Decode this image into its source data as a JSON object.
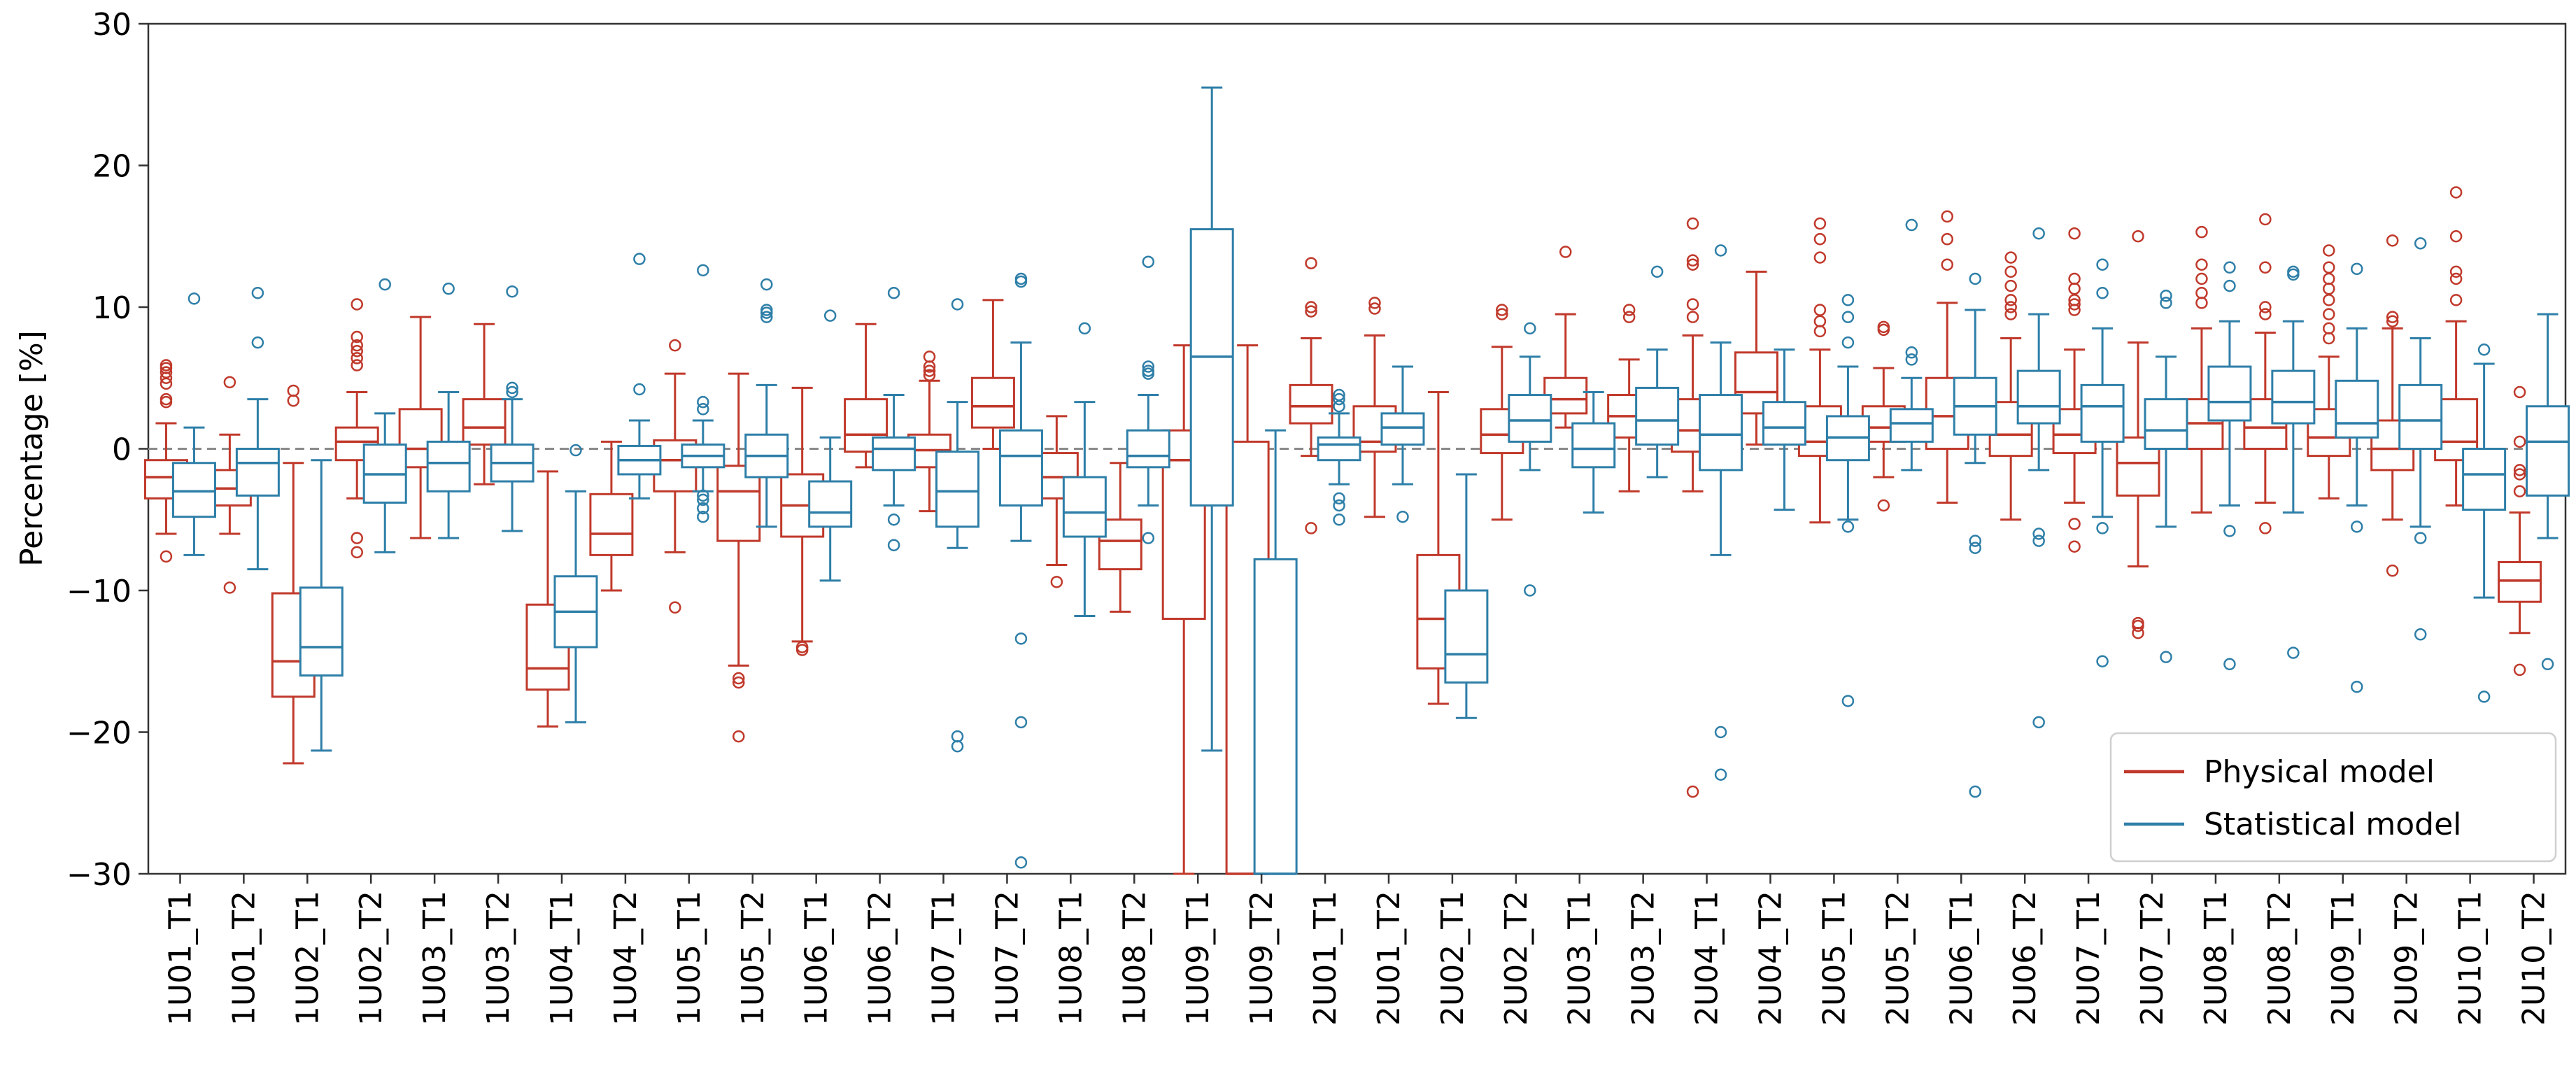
{
  "chart_data": {
    "type": "box",
    "title": "",
    "xlabel": "",
    "ylabel": "Percentage [%]",
    "ylim": [
      -30,
      30
    ],
    "yticks": [
      -30,
      -20,
      -10,
      0,
      10,
      20,
      30
    ],
    "reference_line": 0,
    "grid": false,
    "legend_position": "bottom-right",
    "colors": {
      "physical": "#c0392b",
      "statistical": "#2e7fa8"
    },
    "categories": [
      "1U01_T1",
      "1U01_T2",
      "1U02_T1",
      "1U02_T2",
      "1U03_T1",
      "1U03_T2",
      "1U04_T1",
      "1U04_T2",
      "1U05_T1",
      "1U05_T2",
      "1U06_T1",
      "1U06_T2",
      "1U07_T1",
      "1U07_T2",
      "1U08_T1",
      "1U08_T2",
      "1U09_T1",
      "1U09_T2",
      "2U01_T1",
      "2U01_T2",
      "2U02_T1",
      "2U02_T2",
      "2U03_T1",
      "2U03_T2",
      "2U04_T1",
      "2U04_T2",
      "2U05_T1",
      "2U05_T2",
      "2U06_T1",
      "2U06_T2",
      "2U07_T1",
      "2U07_T2",
      "2U08_T1",
      "2U08_T2",
      "2U09_T1",
      "2U09_T2",
      "2U10_T1",
      "2U10_T2"
    ],
    "series": [
      {
        "name": "Physical model",
        "color": "#c0392b",
        "boxes": [
          {
            "wlo": -6.0,
            "q1": -3.5,
            "med": -2.0,
            "q3": -0.8,
            "whi": 1.8,
            "out": [
              -7.6,
              3.3,
              3.5,
              4.6,
              5.0,
              5.4,
              5.7,
              5.9
            ]
          },
          {
            "wlo": -6.0,
            "q1": -4.0,
            "med": -2.8,
            "q3": -1.5,
            "whi": 1.0,
            "out": [
              -9.8,
              4.7
            ]
          },
          {
            "wlo": -22.2,
            "q1": -17.5,
            "med": -15.0,
            "q3": -10.2,
            "whi": -1.0,
            "out": [
              3.4,
              4.1
            ]
          },
          {
            "wlo": -3.5,
            "q1": -0.8,
            "med": 0.5,
            "q3": 1.5,
            "whi": 4.0,
            "out": [
              -7.3,
              -6.3,
              5.9,
              6.4,
              6.9,
              7.3,
              7.9,
              10.2
            ]
          },
          {
            "wlo": -6.3,
            "q1": -1.3,
            "med": 0.0,
            "q3": 2.8,
            "whi": 9.3,
            "out": []
          },
          {
            "wlo": -2.5,
            "q1": 0.3,
            "med": 1.5,
            "q3": 3.5,
            "whi": 8.8,
            "out": []
          },
          {
            "wlo": -19.6,
            "q1": -17.0,
            "med": -15.5,
            "q3": -11.0,
            "whi": -1.6,
            "out": []
          },
          {
            "wlo": -10.0,
            "q1": -7.5,
            "med": -6.0,
            "q3": -3.2,
            "whi": 0.5,
            "out": []
          },
          {
            "wlo": -7.3,
            "q1": -3.0,
            "med": -0.8,
            "q3": 0.6,
            "whi": 5.3,
            "out": [
              -11.2,
              7.3
            ]
          },
          {
            "wlo": -15.3,
            "q1": -6.5,
            "med": -3.0,
            "q3": -1.2,
            "whi": 5.3,
            "out": [
              -20.3,
              -16.5,
              -16.2
            ]
          },
          {
            "wlo": -13.6,
            "q1": -6.2,
            "med": -4.0,
            "q3": -1.8,
            "whi": 4.3,
            "out": [
              -14.2,
              -14.0
            ]
          },
          {
            "wlo": -1.3,
            "q1": -0.2,
            "med": 1.0,
            "q3": 3.5,
            "whi": 8.8,
            "out": []
          },
          {
            "wlo": -4.4,
            "q1": -1.3,
            "med": -0.1,
            "q3": 1.0,
            "whi": 4.8,
            "out": [
              5.2,
              5.5,
              5.8,
              6.5
            ]
          },
          {
            "wlo": 0.0,
            "q1": 1.5,
            "med": 3.0,
            "q3": 5.0,
            "whi": 10.5,
            "out": []
          },
          {
            "wlo": -8.2,
            "q1": -3.5,
            "med": -2.0,
            "q3": -0.3,
            "whi": 2.3,
            "out": [
              -9.4
            ]
          },
          {
            "wlo": -11.5,
            "q1": -8.5,
            "med": -6.5,
            "q3": -5.0,
            "whi": -1.0,
            "out": []
          },
          {
            "wlo": -30.0,
            "q1": -12.0,
            "med": -0.8,
            "q3": 1.3,
            "whi": 7.3,
            "out": []
          },
          {
            "wlo": -30.0,
            "q1": -30.0,
            "med": -30.0,
            "q3": 0.5,
            "whi": 7.3,
            "out": []
          },
          {
            "wlo": -0.5,
            "q1": 1.8,
            "med": 3.0,
            "q3": 4.5,
            "whi": 7.8,
            "out": [
              -5.6,
              9.7,
              10.0,
              13.1
            ]
          },
          {
            "wlo": -4.8,
            "q1": -0.2,
            "med": 0.5,
            "q3": 3.0,
            "whi": 8.0,
            "out": [
              9.9,
              10.3
            ]
          },
          {
            "wlo": -18.0,
            "q1": -15.5,
            "med": -12.0,
            "q3": -7.5,
            "whi": 4.0,
            "out": []
          },
          {
            "wlo": -5.0,
            "q1": -0.3,
            "med": 1.0,
            "q3": 2.8,
            "whi": 7.2,
            "out": [
              9.5,
              9.8
            ]
          },
          {
            "wlo": 1.5,
            "q1": 2.5,
            "med": 3.5,
            "q3": 5.0,
            "whi": 9.5,
            "out": [
              13.9
            ]
          },
          {
            "wlo": -3.0,
            "q1": 0.8,
            "med": 2.3,
            "q3": 3.8,
            "whi": 6.3,
            "out": [
              9.3,
              9.8
            ]
          },
          {
            "wlo": -3.0,
            "q1": -0.2,
            "med": 1.3,
            "q3": 3.5,
            "whi": 8.0,
            "out": [
              -24.2,
              9.3,
              10.2,
              13.0,
              13.3,
              15.9
            ]
          },
          {
            "wlo": 0.3,
            "q1": 2.5,
            "med": 4.0,
            "q3": 6.8,
            "whi": 12.5,
            "out": []
          },
          {
            "wlo": -5.2,
            "q1": -0.5,
            "med": 0.5,
            "q3": 3.0,
            "whi": 7.0,
            "out": [
              8.3,
              9.0,
              9.8,
              13.5,
              14.8,
              15.9
            ]
          },
          {
            "wlo": -2.0,
            "q1": 0.5,
            "med": 1.5,
            "q3": 3.0,
            "whi": 5.7,
            "out": [
              -4.0,
              8.4,
              8.6
            ]
          },
          {
            "wlo": -3.8,
            "q1": 0.0,
            "med": 2.3,
            "q3": 5.0,
            "whi": 10.3,
            "out": [
              13.0,
              14.8,
              16.4
            ]
          },
          {
            "wlo": -5.0,
            "q1": -0.5,
            "med": 1.0,
            "q3": 3.3,
            "whi": 7.8,
            "out": [
              9.5,
              10.0,
              10.5,
              11.5,
              12.5,
              13.5
            ]
          },
          {
            "wlo": -3.8,
            "q1": -0.3,
            "med": 1.0,
            "q3": 2.8,
            "whi": 7.0,
            "out": [
              -6.9,
              -5.3,
              9.8,
              10.2,
              10.5,
              11.3,
              12.0,
              15.2
            ]
          },
          {
            "wlo": -8.3,
            "q1": -3.3,
            "med": -1.0,
            "q3": 0.8,
            "whi": 7.5,
            "out": [
              -13.0,
              -12.5,
              -12.3,
              15.0
            ]
          },
          {
            "wlo": -4.5,
            "q1": 0.0,
            "med": 1.8,
            "q3": 3.5,
            "whi": 8.5,
            "out": [
              10.3,
              11.0,
              12.0,
              13.0,
              15.3
            ]
          },
          {
            "wlo": -3.8,
            "q1": 0.0,
            "med": 1.5,
            "q3": 3.5,
            "whi": 8.2,
            "out": [
              -5.6,
              9.5,
              10.0,
              12.8,
              16.2
            ]
          },
          {
            "wlo": -3.5,
            "q1": -0.5,
            "med": 0.8,
            "q3": 2.8,
            "whi": 6.5,
            "out": [
              7.8,
              8.5,
              9.5,
              10.5,
              11.3,
              12.0,
              12.8,
              14.0
            ]
          },
          {
            "wlo": -5.0,
            "q1": -1.5,
            "med": 0.0,
            "q3": 2.0,
            "whi": 8.5,
            "out": [
              -8.6,
              9.0,
              9.3,
              14.7
            ]
          },
          {
            "wlo": -4.0,
            "q1": -0.8,
            "med": 0.5,
            "q3": 3.5,
            "whi": 9.0,
            "out": [
              10.5,
              12.0,
              12.5,
              15.0,
              18.1
            ]
          },
          {
            "wlo": -13.0,
            "q1": -10.8,
            "med": -9.3,
            "q3": -8.0,
            "whi": -4.5,
            "out": [
              -15.6,
              -3.0,
              -1.8,
              -1.5,
              0.5,
              4.0
            ]
          }
        ]
      },
      {
        "name": "Statistical model",
        "color": "#2e7fa8",
        "boxes": [
          {
            "wlo": -7.5,
            "q1": -4.8,
            "med": -3.0,
            "q3": -1.0,
            "whi": 1.5,
            "out": [
              10.6
            ]
          },
          {
            "wlo": -8.5,
            "q1": -3.3,
            "med": -1.0,
            "q3": 0.0,
            "whi": 3.5,
            "out": [
              7.5,
              11.0
            ]
          },
          {
            "wlo": -21.3,
            "q1": -16.0,
            "med": -14.0,
            "q3": -9.8,
            "whi": -0.8,
            "out": []
          },
          {
            "wlo": -7.3,
            "q1": -3.8,
            "med": -1.8,
            "q3": 0.3,
            "whi": 2.5,
            "out": [
              11.6
            ]
          },
          {
            "wlo": -6.3,
            "q1": -3.0,
            "med": -1.0,
            "q3": 0.5,
            "whi": 4.0,
            "out": [
              11.3
            ]
          },
          {
            "wlo": -5.8,
            "q1": -2.3,
            "med": -1.0,
            "q3": 0.3,
            "whi": 3.5,
            "out": [
              4.0,
              4.3,
              11.1
            ]
          },
          {
            "wlo": -19.3,
            "q1": -14.0,
            "med": -11.5,
            "q3": -9.0,
            "whi": -3.0,
            "out": [
              -0.1
            ]
          },
          {
            "wlo": -3.5,
            "q1": -1.8,
            "med": -0.8,
            "q3": 0.2,
            "whi": 2.0,
            "out": [
              4.2,
              13.4
            ]
          },
          {
            "wlo": -3.0,
            "q1": -1.3,
            "med": -0.5,
            "q3": 0.3,
            "whi": 2.0,
            "out": [
              -4.8,
              -4.2,
              -3.6,
              -3.3,
              2.8,
              3.3,
              12.6
            ]
          },
          {
            "wlo": -5.5,
            "q1": -2.0,
            "med": -0.5,
            "q3": 1.0,
            "whi": 4.5,
            "out": [
              9.3,
              9.6,
              9.8,
              11.6
            ]
          },
          {
            "wlo": -9.3,
            "q1": -5.5,
            "med": -4.5,
            "q3": -2.3,
            "whi": 0.8,
            "out": [
              9.4
            ]
          },
          {
            "wlo": -4.0,
            "q1": -1.5,
            "med": 0.0,
            "q3": 0.8,
            "whi": 3.8,
            "out": [
              -6.8,
              -5.0,
              11.0
            ]
          },
          {
            "wlo": -7.0,
            "q1": -5.5,
            "med": -3.0,
            "q3": -0.2,
            "whi": 3.3,
            "out": [
              -21.0,
              -20.3,
              10.2
            ]
          },
          {
            "wlo": -6.5,
            "q1": -4.0,
            "med": -0.5,
            "q3": 1.3,
            "whi": 7.5,
            "out": [
              -29.2,
              -19.3,
              -13.4,
              11.8,
              12.0
            ]
          },
          {
            "wlo": -11.8,
            "q1": -6.2,
            "med": -4.5,
            "q3": -2.0,
            "whi": 3.3,
            "out": [
              8.5
            ]
          },
          {
            "wlo": -4.0,
            "q1": -1.3,
            "med": -0.5,
            "q3": 1.3,
            "whi": 3.8,
            "out": [
              -6.3,
              5.3,
              5.5,
              5.8,
              13.2
            ]
          },
          {
            "wlo": -21.3,
            "q1": -4.0,
            "med": 6.5,
            "q3": 15.5,
            "whi": 25.5,
            "out": []
          },
          {
            "wlo": -30.0,
            "q1": -30.0,
            "med": -30.0,
            "q3": -7.8,
            "whi": 1.3,
            "out": []
          },
          {
            "wlo": -2.5,
            "q1": -0.8,
            "med": 0.3,
            "q3": 0.8,
            "whi": 2.5,
            "out": [
              -5.0,
              -4.0,
              -3.5,
              3.0,
              3.5,
              3.8
            ]
          },
          {
            "wlo": -2.5,
            "q1": 0.3,
            "med": 1.5,
            "q3": 2.5,
            "whi": 5.8,
            "out": [
              -4.8
            ]
          },
          {
            "wlo": -19.0,
            "q1": -16.5,
            "med": -14.5,
            "q3": -10.0,
            "whi": -1.8,
            "out": []
          },
          {
            "wlo": -1.5,
            "q1": 0.5,
            "med": 2.0,
            "q3": 3.8,
            "whi": 6.5,
            "out": [
              -10.0,
              8.5
            ]
          },
          {
            "wlo": -4.5,
            "q1": -1.3,
            "med": 0.0,
            "q3": 1.8,
            "whi": 4.0,
            "out": []
          },
          {
            "wlo": -2.0,
            "q1": 0.3,
            "med": 2.0,
            "q3": 4.3,
            "whi": 7.0,
            "out": [
              12.5
            ]
          },
          {
            "wlo": -7.5,
            "q1": -1.5,
            "med": 1.0,
            "q3": 3.8,
            "whi": 7.5,
            "out": [
              -23.0,
              -20.0,
              14.0
            ]
          },
          {
            "wlo": -4.3,
            "q1": 0.3,
            "med": 1.5,
            "q3": 3.3,
            "whi": 7.0,
            "out": []
          },
          {
            "wlo": -5.0,
            "q1": -0.8,
            "med": 0.8,
            "q3": 2.3,
            "whi": 5.8,
            "out": [
              -17.8,
              -5.5,
              7.5,
              9.3,
              10.5
            ]
          },
          {
            "wlo": -1.5,
            "q1": 0.5,
            "med": 1.8,
            "q3": 2.8,
            "whi": 5.0,
            "out": [
              6.3,
              6.8,
              15.8
            ]
          },
          {
            "wlo": -1.0,
            "q1": 1.0,
            "med": 3.0,
            "q3": 5.0,
            "whi": 9.8,
            "out": [
              -24.2,
              -7.0,
              -6.5,
              12.0
            ]
          },
          {
            "wlo": -1.5,
            "q1": 1.8,
            "med": 3.0,
            "q3": 5.5,
            "whi": 9.5,
            "out": [
              -19.3,
              -6.5,
              -6.0,
              15.2
            ]
          },
          {
            "wlo": -4.8,
            "q1": 0.5,
            "med": 3.0,
            "q3": 4.5,
            "whi": 8.5,
            "out": [
              -15.0,
              -5.6,
              11.0,
              13.0
            ]
          },
          {
            "wlo": -5.5,
            "q1": 0.0,
            "med": 1.3,
            "q3": 3.5,
            "whi": 6.5,
            "out": [
              -14.7,
              10.3,
              10.8
            ]
          },
          {
            "wlo": -4.0,
            "q1": 2.0,
            "med": 3.3,
            "q3": 5.8,
            "whi": 9.0,
            "out": [
              -15.2,
              -5.8,
              11.5,
              12.8
            ]
          },
          {
            "wlo": -4.5,
            "q1": 1.8,
            "med": 3.3,
            "q3": 5.5,
            "whi": 9.0,
            "out": [
              -14.4,
              12.3,
              12.5
            ]
          },
          {
            "wlo": -4.0,
            "q1": 0.8,
            "med": 1.8,
            "q3": 4.8,
            "whi": 8.5,
            "out": [
              -16.8,
              -5.5,
              12.7
            ]
          },
          {
            "wlo": -5.5,
            "q1": 0.0,
            "med": 2.0,
            "q3": 4.5,
            "whi": 7.8,
            "out": [
              -13.1,
              -6.3,
              14.5
            ]
          },
          {
            "wlo": -10.5,
            "q1": -4.3,
            "med": -1.8,
            "q3": 0.0,
            "whi": 6.0,
            "out": [
              -17.5,
              7.0
            ]
          },
          {
            "wlo": -6.3,
            "q1": -3.3,
            "med": 0.5,
            "q3": 3.0,
            "whi": 9.5,
            "out": [
              -15.2
            ]
          }
        ]
      }
    ]
  }
}
